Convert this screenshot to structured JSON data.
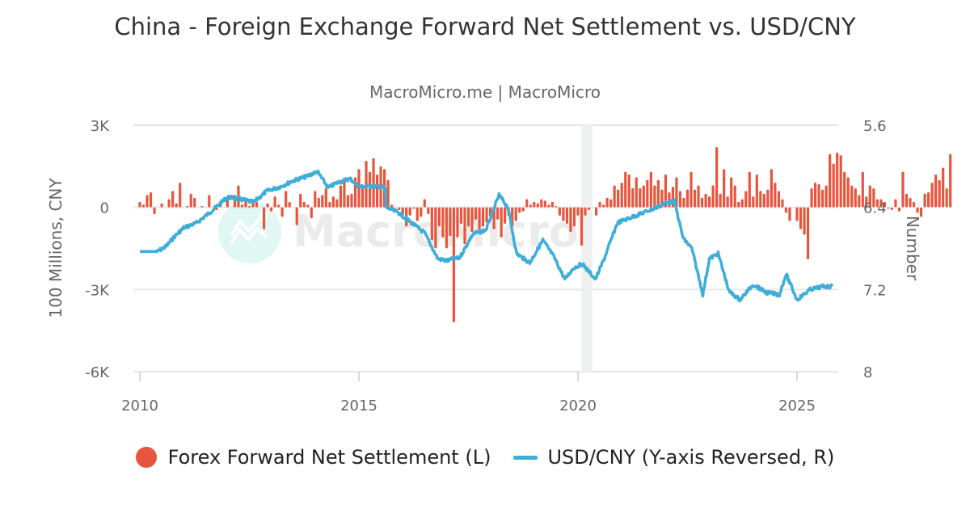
{
  "title": "China - Foreign Exchange Forward Net Settlement vs. USD/CNY",
  "subtitle": "MacroMicro.me | MacroMicro",
  "watermark": "MacroMicro",
  "colors": {
    "bar": "#e8553d",
    "line": "#3eaed9",
    "grid": "#e6e6e6",
    "shade": "#eef0ef"
  },
  "legend": [
    {
      "label": "Forex Forward Net Settlement (L)",
      "icon": "circle-marker-icon"
    },
    {
      "label": "USD/CNY (Y-axis Reversed, R)",
      "icon": "line-marker-icon"
    }
  ],
  "axes": {
    "left_title": "100 Millions, CNY",
    "right_title": "Number",
    "left_ticks": [
      "3K",
      "0",
      "-3K",
      "-6K"
    ],
    "right_ticks": [
      "5.6",
      "6.4",
      "7.2",
      "8"
    ],
    "x_ticks": [
      "2010",
      "2015",
      "2020",
      "2025"
    ]
  },
  "chart_data": {
    "type": "bar+line",
    "title": "China - Foreign Exchange Forward Net Settlement vs. USD/CNY",
    "subtitle": "MacroMicro.me | MacroMicro",
    "xlabel": "",
    "ylabel_left": "100 Millions, CNY",
    "ylabel_right": "Number",
    "ylim_left": [
      -6000,
      3000
    ],
    "ylim_right": [
      8,
      5.6
    ],
    "right_axis_reversed": true,
    "grid": true,
    "legend_position": "bottom",
    "shaded_region": [
      2020.08,
      2020.33
    ],
    "series": [
      {
        "name": "Forex Forward Net Settlement (L)",
        "type": "bar",
        "start": "2010-01",
        "frequency": "monthly",
        "values": [
          200,
          100,
          450,
          550,
          -250,
          0,
          150,
          0,
          300,
          600,
          150,
          900,
          0,
          50,
          500,
          350,
          0,
          50,
          0,
          450,
          0,
          -100,
          200,
          0,
          400,
          0,
          450,
          800,
          100,
          250,
          50,
          300,
          200,
          0,
          -800,
          150,
          -150,
          400,
          100,
          -350,
          600,
          200,
          0,
          -650,
          500,
          200,
          100,
          -400,
          600,
          350,
          450,
          700,
          200,
          400,
          300,
          800,
          1000,
          450,
          500,
          1100,
          1400,
          750,
          1700,
          1300,
          1800,
          1200,
          1500,
          1400,
          1000,
          100,
          0,
          -100,
          -300,
          -700,
          -300,
          -50,
          -500,
          -350,
          300,
          -250,
          -1200,
          -1500,
          -700,
          -1100,
          -1500,
          -1050,
          -4200,
          -1100,
          -600,
          -1350,
          -700,
          -900,
          -450,
          -800,
          -700,
          -550,
          -350,
          -800,
          -450,
          -1100,
          -600,
          -300,
          -700,
          -500,
          -200,
          -150,
          300,
          100,
          200,
          150,
          300,
          250,
          100,
          200,
          50,
          -300,
          -500,
          -600,
          -900,
          -700,
          -300,
          -1400,
          -300,
          -100,
          0,
          -300,
          200,
          100,
          350,
          300,
          800,
          650,
          900,
          1300,
          1200,
          700,
          1100,
          700,
          800,
          1000,
          1300,
          800,
          1000,
          650,
          1200,
          550,
          750,
          1100,
          600,
          350,
          650,
          1300,
          650,
          800,
          350,
          500,
          400,
          800,
          2200,
          500,
          1400,
          400,
          1100,
          800,
          200,
          300,
          600,
          1300,
          400,
          1200,
          600,
          500,
          650,
          1400,
          900,
          600,
          300,
          -200,
          -500,
          0,
          -500,
          -800,
          -1000,
          -1900,
          700,
          900,
          850,
          650,
          800,
          1950,
          1600,
          2000,
          1900,
          1300,
          1100,
          800,
          700,
          450,
          1300,
          400,
          800,
          700,
          300,
          300,
          200,
          -50,
          -100,
          300,
          -150,
          1300,
          500,
          350,
          200,
          -200,
          -350,
          500,
          550,
          900,
          1200,
          1000,
          1450,
          700,
          1950
        ]
      },
      {
        "name": "USD/CNY (Y-axis Reversed, R)",
        "type": "line",
        "x": [
          2010.0,
          2010.4,
          2010.6,
          2010.8,
          2011.0,
          2011.3,
          2011.6,
          2012.0,
          2012.3,
          2012.6,
          2012.9,
          2013.2,
          2013.5,
          2013.8,
          2014.05,
          2014.3,
          2014.5,
          2014.8,
          2015.0,
          2015.3,
          2015.6,
          2015.62,
          2015.9,
          2016.2,
          2016.5,
          2016.8,
          2017.0,
          2017.3,
          2017.6,
          2017.9,
          2018.2,
          2018.4,
          2018.6,
          2018.9,
          2019.2,
          2019.45,
          2019.7,
          2019.9,
          2020.1,
          2020.4,
          2020.6,
          2020.9,
          2021.2,
          2021.5,
          2021.8,
          2022.0,
          2022.2,
          2022.4,
          2022.6,
          2022.85,
          2023.0,
          2023.2,
          2023.45,
          2023.7,
          2024.0,
          2024.3,
          2024.6,
          2024.75,
          2025.0,
          2025.3,
          2025.6,
          2025.8
        ],
        "values": [
          6.83,
          6.83,
          6.78,
          6.68,
          6.6,
          6.55,
          6.45,
          6.3,
          6.32,
          6.35,
          6.24,
          6.2,
          6.14,
          6.1,
          6.05,
          6.21,
          6.16,
          6.12,
          6.2,
          6.19,
          6.21,
          6.4,
          6.45,
          6.55,
          6.65,
          6.9,
          6.92,
          6.89,
          6.66,
          6.62,
          6.28,
          6.4,
          6.85,
          6.94,
          6.72,
          6.88,
          7.1,
          6.99,
          6.95,
          7.1,
          6.9,
          6.55,
          6.5,
          6.45,
          6.4,
          6.36,
          6.34,
          6.7,
          6.8,
          7.25,
          6.9,
          6.85,
          7.22,
          7.3,
          7.15,
          7.23,
          7.25,
          7.05,
          7.3,
          7.2,
          7.17,
          7.17
        ]
      }
    ]
  }
}
